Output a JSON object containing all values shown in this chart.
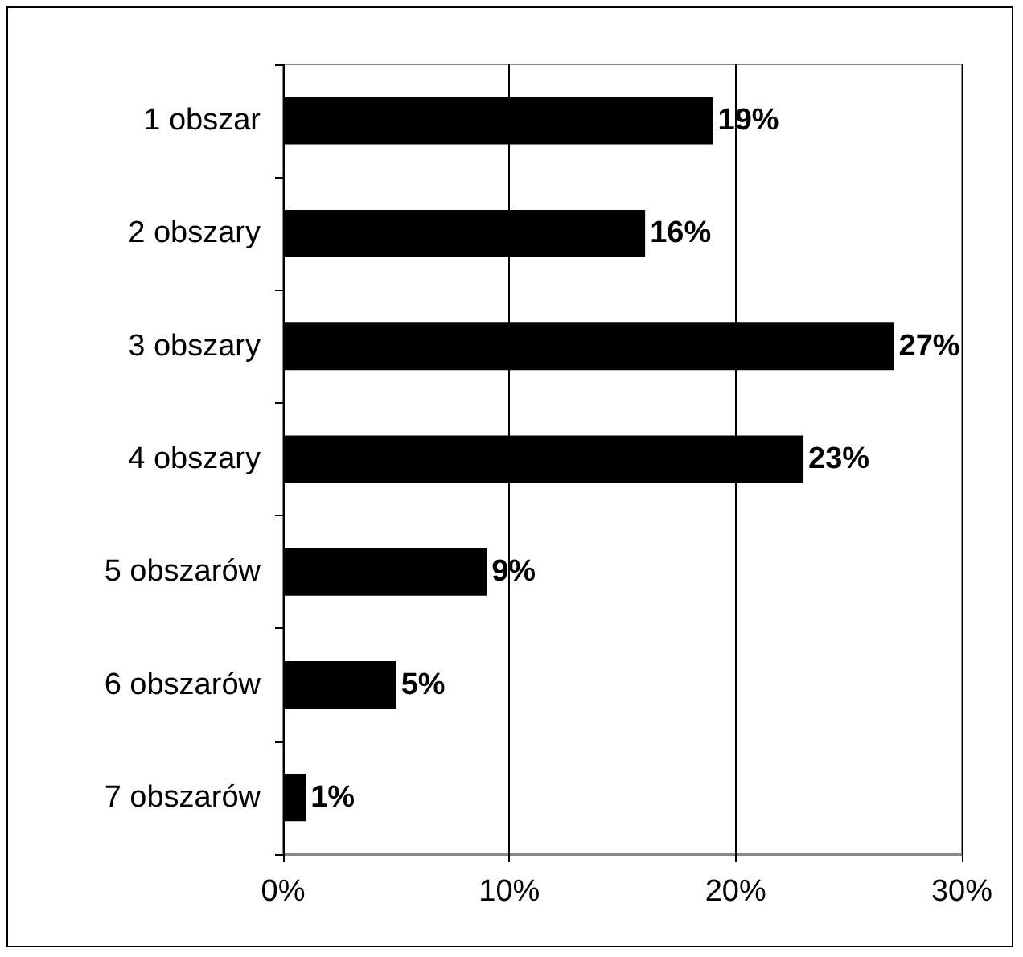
{
  "chart_data": {
    "type": "bar",
    "orientation": "horizontal",
    "categories": [
      "1 obszar",
      "2 obszary",
      "3 obszary",
      "4 obszary",
      "5 obszarów",
      "6 obszarów",
      "7 obszarów"
    ],
    "values": [
      19,
      16,
      27,
      23,
      9,
      5,
      1
    ],
    "value_labels": [
      "19%",
      "16%",
      "27%",
      "23%",
      "9%",
      "5%",
      "1%"
    ],
    "color": "#000000",
    "xlim": [
      0,
      30
    ],
    "xticks": [
      {
        "value": 0,
        "label": "0%"
      },
      {
        "value": 10,
        "label": "10%"
      },
      {
        "value": 20,
        "label": "20%"
      },
      {
        "value": 30,
        "label": "30%"
      }
    ],
    "grid": "x"
  }
}
